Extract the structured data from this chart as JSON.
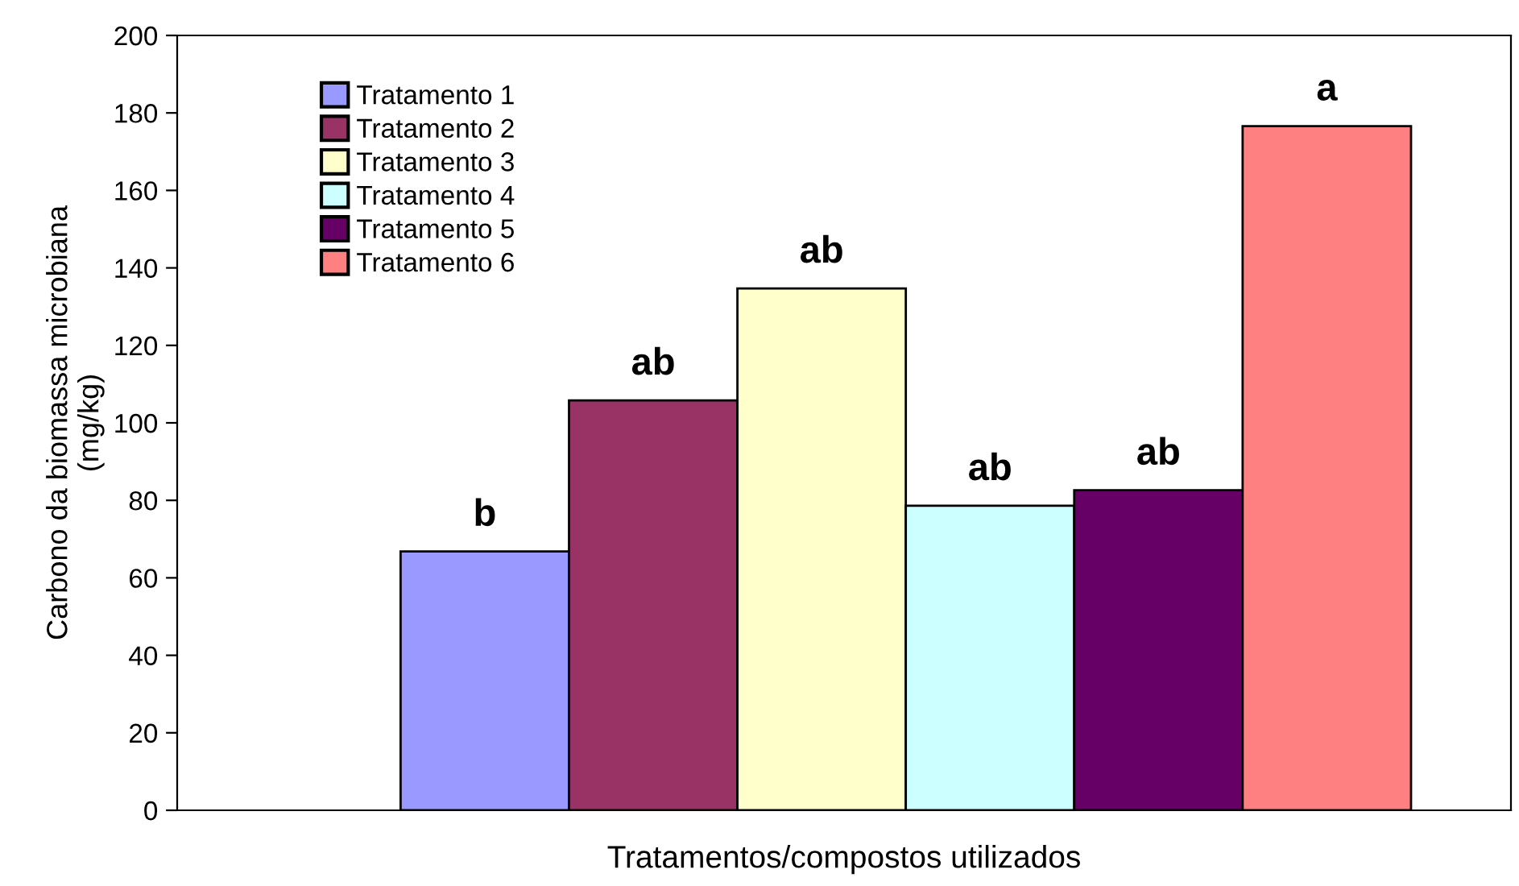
{
  "chart_data": {
    "type": "bar",
    "xlabel": "Tratamentos/compostos utilizados",
    "ylabel": "Carbono da biomassa microbiana\n(mg/kg)",
    "categories": [
      null
    ],
    "series": [
      {
        "name": "Tratamento 1",
        "color": "#9999ff",
        "values": [
          66.8
        ],
        "value_labels": [
          "b"
        ]
      },
      {
        "name": "Tratamento 2",
        "color": "#993366",
        "values": [
          105.8
        ],
        "value_labels": [
          "ab"
        ]
      },
      {
        "name": "Tratamento 3",
        "color": "#ffffcc",
        "values": [
          134.7
        ],
        "value_labels": [
          "ab"
        ]
      },
      {
        "name": "Tratamento 4",
        "color": "#ccffff",
        "values": [
          78.6
        ],
        "value_labels": [
          "ab"
        ]
      },
      {
        "name": "Tratamento 5",
        "color": "#660066",
        "values": [
          82.6
        ],
        "value_labels": [
          "ab"
        ]
      },
      {
        "name": "Tratamento 6",
        "color": "#ff8080",
        "values": [
          176.6
        ],
        "value_labels": [
          "a"
        ]
      }
    ],
    "ylim": [
      0,
      200
    ],
    "yticks": [
      0,
      20,
      40,
      60,
      80,
      100,
      120,
      140,
      160,
      180,
      200
    ],
    "legend": "top left",
    "grid": false
  }
}
